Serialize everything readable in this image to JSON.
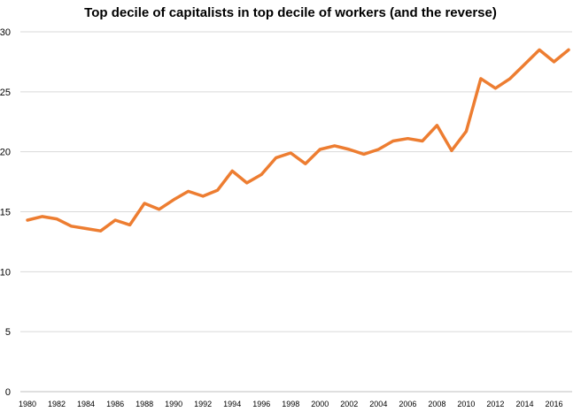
{
  "chart_data": {
    "type": "line",
    "title": "Top decile of capitalists in top decile of workers (and the reverse)",
    "xlabel": "",
    "ylabel": "",
    "x": [
      1980,
      1981,
      1982,
      1983,
      1984,
      1985,
      1986,
      1987,
      1988,
      1989,
      1990,
      1991,
      1992,
      1993,
      1994,
      1995,
      1996,
      1997,
      1998,
      1999,
      2000,
      2001,
      2002,
      2003,
      2004,
      2005,
      2006,
      2007,
      2008,
      2009,
      2010,
      2011,
      2012,
      2013,
      2014,
      2015,
      2016,
      2017
    ],
    "xticks": [
      "1980",
      "1982",
      "1984",
      "1986",
      "1988",
      "1990",
      "1992",
      "1994",
      "1996",
      "1998",
      "2000",
      "2002",
      "2004",
      "2006",
      "2008",
      "2010",
      "2012",
      "2014",
      "2016"
    ],
    "yticks": [
      "0",
      "5",
      "10",
      "15",
      "20",
      "25",
      "30"
    ],
    "ylim": [
      0,
      30
    ],
    "grid": true,
    "legend": "none",
    "series": [
      {
        "values": [
          14.3,
          14.6,
          14.4,
          13.8,
          13.6,
          13.4,
          14.3,
          13.9,
          15.7,
          15.2,
          16.0,
          16.7,
          16.3,
          16.8,
          18.4,
          17.4,
          18.1,
          19.5,
          19.9,
          19.0,
          20.2,
          20.5,
          20.2,
          19.8,
          20.2,
          20.9,
          21.1,
          20.9,
          22.2,
          20.1,
          21.7,
          26.1,
          25.3,
          26.1,
          27.3,
          28.5,
          27.5,
          28.5
        ],
        "color": "#ED7D31"
      }
    ]
  }
}
